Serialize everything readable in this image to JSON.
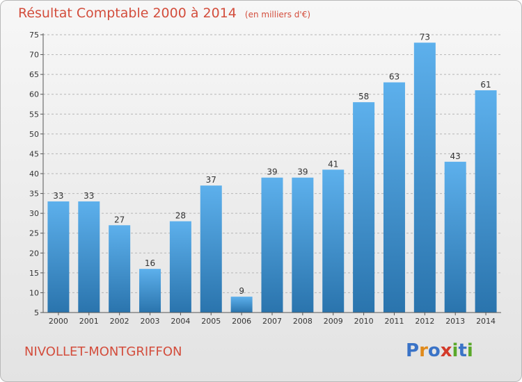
{
  "header": {
    "title": "Résultat Comptable 2000 à 2014",
    "subtitle": "(en milliers d'€)"
  },
  "footer": {
    "place": "NIVOLLET-MONTGRIFFON",
    "logo": [
      "P",
      "r",
      "o",
      "x",
      "i",
      "t",
      "i"
    ],
    "logo_colors": [
      "#3a73c7",
      "#e08a1b",
      "#3a73c7",
      "#d33a2a",
      "#5aa82a",
      "#3a73c7",
      "#5aa82a"
    ]
  },
  "colors": {
    "bar_top": "#5db0ec",
    "bar_bottom": "#2a74ad",
    "title": "#d34d3c"
  },
  "chart_data": {
    "type": "bar",
    "title": "Résultat Comptable 2000 à 2014",
    "subtitle": "(en milliers d'€)",
    "categories": [
      "2000",
      "2001",
      "2002",
      "2003",
      "2004",
      "2005",
      "2006",
      "2007",
      "2008",
      "2009",
      "2010",
      "2011",
      "2012",
      "2013",
      "2014"
    ],
    "values": [
      33,
      33,
      27,
      16,
      28,
      37,
      9,
      39,
      39,
      41,
      58,
      63,
      73,
      43,
      61
    ],
    "ylim": [
      5,
      75
    ],
    "yticks": [
      5,
      10,
      15,
      20,
      25,
      30,
      35,
      40,
      45,
      50,
      55,
      60,
      65,
      70,
      75
    ],
    "grid": "horizontal dashed",
    "data_labels": true
  }
}
